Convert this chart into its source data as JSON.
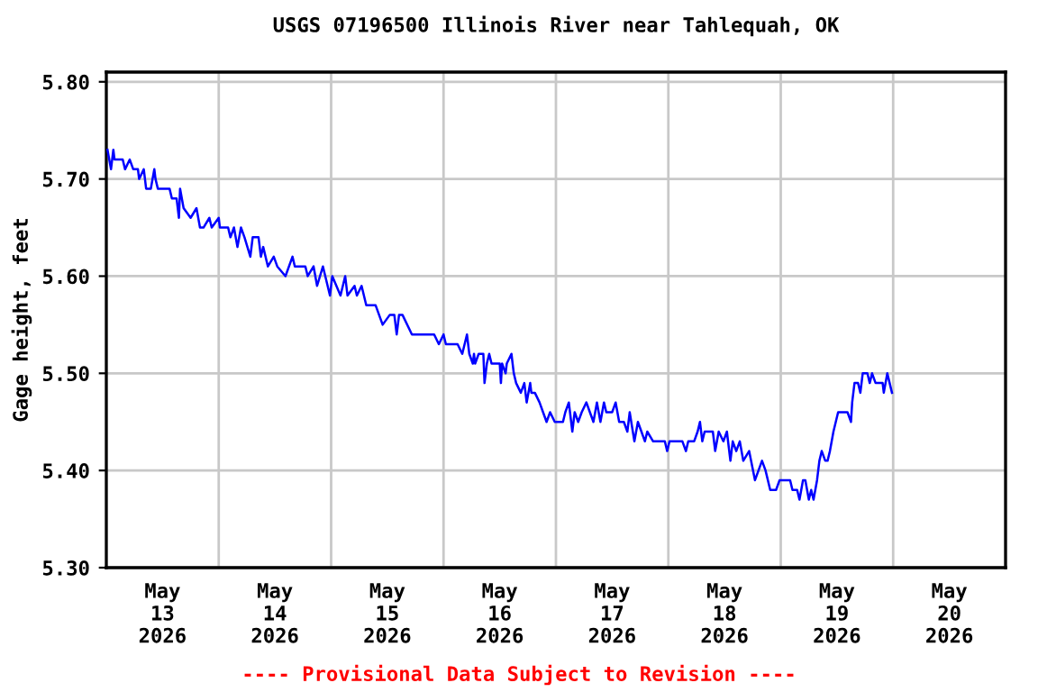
{
  "chart_data": {
    "type": "line",
    "title": "USGS 07196500 Illinois River near Tahlequah, OK",
    "ylabel": "Gage height, feet",
    "annotations": [
      "---- Provisional Data Subject to Revision ----"
    ],
    "xlim": [
      "2026-05-13T00:00",
      "2026-05-21T00:00"
    ],
    "xticks": [
      {
        "value": "2026-05-13T12:00",
        "label": "May\n13\n2026"
      },
      {
        "value": "2026-05-14T00:00",
        "label": null
      },
      {
        "value": "2026-05-14T12:00",
        "label": "May\n14\n2026"
      },
      {
        "value": "2026-05-15T00:00",
        "label": null
      },
      {
        "value": "2026-05-15T12:00",
        "label": "May\n15\n2026"
      },
      {
        "value": "2026-05-16T00:00",
        "label": null
      },
      {
        "value": "2026-05-16T12:00",
        "label": "May\n16\n2026"
      },
      {
        "value": "2026-05-17T00:00",
        "label": null
      },
      {
        "value": "2026-05-17T12:00",
        "label": "May\n17\n2026"
      },
      {
        "value": "2026-05-18T00:00",
        "label": null
      },
      {
        "value": "2026-05-18T12:00",
        "label": "May\n18\n2026"
      },
      {
        "value": "2026-05-19T00:00",
        "label": null
      },
      {
        "value": "2026-05-19T12:00",
        "label": "May\n19\n2026"
      },
      {
        "value": "2026-05-20T00:00",
        "label": null
      },
      {
        "value": "2026-05-20T12:00",
        "label": "May\n20\n2026"
      }
    ],
    "ylim": [
      5.3,
      5.81
    ],
    "yticks": [
      {
        "value": 5.3,
        "label": "5.30"
      },
      {
        "value": 5.4,
        "label": "5.40"
      },
      {
        "value": 5.5,
        "label": "5.50"
      },
      {
        "value": 5.6,
        "label": "5.60"
      },
      {
        "value": 5.7,
        "label": "5.70"
      },
      {
        "value": 5.8,
        "label": "5.80"
      }
    ],
    "grid": true,
    "legend": false,
    "marker": "none",
    "line_style": "solid",
    "series": [
      {
        "color": "#0000ff",
        "x": [
          "2026-05-13T00:15",
          "2026-05-13T01:00",
          "2026-05-13T01:30",
          "2026-05-13T01:45",
          "2026-05-13T03:30",
          "2026-05-13T04:00",
          "2026-05-13T05:00",
          "2026-05-13T05:45",
          "2026-05-13T06:45",
          "2026-05-13T07:00",
          "2026-05-13T08:00",
          "2026-05-13T08:30",
          "2026-05-13T09:30",
          "2026-05-13T10:15",
          "2026-05-13T10:30",
          "2026-05-13T11:00",
          "2026-05-13T13:30",
          "2026-05-13T14:00",
          "2026-05-13T15:00",
          "2026-05-13T15:30",
          "2026-05-13T15:45",
          "2026-05-13T16:30",
          "2026-05-13T18:00",
          "2026-05-13T19:15",
          "2026-05-13T20:00",
          "2026-05-13T20:45",
          "2026-05-13T22:00",
          "2026-05-13T22:30",
          "2026-05-14T00:00",
          "2026-05-14T00:15",
          "2026-05-14T02:00",
          "2026-05-14T02:30",
          "2026-05-14T03:15",
          "2026-05-14T04:00",
          "2026-05-14T04:45",
          "2026-05-14T05:30",
          "2026-05-14T06:45",
          "2026-05-14T07:15",
          "2026-05-14T08:30",
          "2026-05-14T09:00",
          "2026-05-14T09:30",
          "2026-05-14T10:30",
          "2026-05-14T11:45",
          "2026-05-14T12:30",
          "2026-05-14T14:15",
          "2026-05-14T15:45",
          "2026-05-14T16:15",
          "2026-05-14T18:30",
          "2026-05-14T19:00",
          "2026-05-14T20:15",
          "2026-05-14T21:00",
          "2026-05-14T22:15",
          "2026-05-14T23:45",
          "2026-05-15T00:15",
          "2026-05-15T02:00",
          "2026-05-15T03:00",
          "2026-05-15T03:30",
          "2026-05-15T05:00",
          "2026-05-15T05:30",
          "2026-05-15T06:30",
          "2026-05-15T07:30",
          "2026-05-15T09:30",
          "2026-05-15T10:15",
          "2026-05-15T11:00",
          "2026-05-15T12:30",
          "2026-05-15T13:30",
          "2026-05-15T14:00",
          "2026-05-15T14:30",
          "2026-05-15T15:15",
          "2026-05-15T17:15",
          "2026-05-15T22:00",
          "2026-05-15T23:00",
          "2026-05-16T00:00",
          "2026-05-16T00:30",
          "2026-05-16T03:00",
          "2026-05-16T04:00",
          "2026-05-16T05:00",
          "2026-05-16T05:30",
          "2026-05-16T06:15",
          "2026-05-16T06:30",
          "2026-05-16T06:45",
          "2026-05-16T07:30",
          "2026-05-16T08:30",
          "2026-05-16T08:45",
          "2026-05-16T09:15",
          "2026-05-16T09:45",
          "2026-05-16T10:15",
          "2026-05-16T12:00",
          "2026-05-16T12:15",
          "2026-05-16T12:30",
          "2026-05-16T13:15",
          "2026-05-16T13:30",
          "2026-05-16T14:30",
          "2026-05-16T15:00",
          "2026-05-16T15:30",
          "2026-05-16T16:30",
          "2026-05-16T17:15",
          "2026-05-16T17:45",
          "2026-05-16T18:30",
          "2026-05-16T18:45",
          "2026-05-16T19:30",
          "2026-05-16T20:30",
          "2026-05-16T21:15",
          "2026-05-16T22:00",
          "2026-05-16T22:45",
          "2026-05-16T23:45",
          "2026-05-17T01:30",
          "2026-05-17T02:00",
          "2026-05-17T02:45",
          "2026-05-17T03:30",
          "2026-05-17T04:00",
          "2026-05-17T04:45",
          "2026-05-17T05:30",
          "2026-05-17T06:30",
          "2026-05-17T07:15",
          "2026-05-17T08:00",
          "2026-05-17T08:45",
          "2026-05-17T09:30",
          "2026-05-17T10:15",
          "2026-05-17T10:45",
          "2026-05-17T12:00",
          "2026-05-17T12:45",
          "2026-05-17T13:30",
          "2026-05-17T14:30",
          "2026-05-17T15:15",
          "2026-05-17T15:45",
          "2026-05-17T16:45",
          "2026-05-17T17:30",
          "2026-05-17T18:15",
          "2026-05-17T19:00",
          "2026-05-17T19:30",
          "2026-05-17T20:45",
          "2026-05-17T21:45",
          "2026-05-17T23:15",
          "2026-05-17T23:45",
          "2026-05-18T00:15",
          "2026-05-18T03:00",
          "2026-05-18T03:45",
          "2026-05-18T04:15",
          "2026-05-18T05:30",
          "2026-05-18T06:15",
          "2026-05-18T06:45",
          "2026-05-18T07:15",
          "2026-05-18T07:45",
          "2026-05-18T09:30",
          "2026-05-18T10:00",
          "2026-05-18T10:45",
          "2026-05-18T11:45",
          "2026-05-18T12:30",
          "2026-05-18T13:15",
          "2026-05-18T13:45",
          "2026-05-18T14:30",
          "2026-05-18T15:15",
          "2026-05-18T16:00",
          "2026-05-18T17:15",
          "2026-05-18T18:30",
          "2026-05-18T19:15",
          "2026-05-18T20:00",
          "2026-05-18T20:45",
          "2026-05-18T21:45",
          "2026-05-18T23:00",
          "2026-05-18T23:45",
          "2026-05-19T02:00",
          "2026-05-19T02:30",
          "2026-05-19T03:30",
          "2026-05-19T04:00",
          "2026-05-19T04:45",
          "2026-05-19T05:15",
          "2026-05-19T06:00",
          "2026-05-19T06:30",
          "2026-05-19T07:00",
          "2026-05-19T07:45",
          "2026-05-19T08:15",
          "2026-05-19T08:45",
          "2026-05-19T09:30",
          "2026-05-19T10:00",
          "2026-05-19T10:30",
          "2026-05-19T11:15",
          "2026-05-19T11:45",
          "2026-05-19T12:15",
          "2026-05-19T13:00",
          "2026-05-19T13:45",
          "2026-05-19T14:15",
          "2026-05-19T15:00",
          "2026-05-19T15:15",
          "2026-05-19T15:45",
          "2026-05-19T16:30",
          "2026-05-19T17:00",
          "2026-05-19T17:30",
          "2026-05-19T18:30",
          "2026-05-19T19:00",
          "2026-05-19T19:30",
          "2026-05-19T20:15",
          "2026-05-19T21:45",
          "2026-05-19T22:00",
          "2026-05-19T22:45",
          "2026-05-19T23:15",
          "2026-05-19T23:45"
        ],
        "values": [
          5.73,
          5.71,
          5.73,
          5.72,
          5.72,
          5.71,
          5.72,
          5.71,
          5.71,
          5.7,
          5.71,
          5.69,
          5.69,
          5.71,
          5.7,
          5.69,
          5.69,
          5.68,
          5.68,
          5.66,
          5.69,
          5.67,
          5.66,
          5.67,
          5.65,
          5.65,
          5.66,
          5.65,
          5.66,
          5.65,
          5.65,
          5.64,
          5.65,
          5.63,
          5.65,
          5.64,
          5.62,
          5.64,
          5.64,
          5.62,
          5.63,
          5.61,
          5.62,
          5.61,
          5.6,
          5.62,
          5.61,
          5.61,
          5.6,
          5.61,
          5.59,
          5.61,
          5.58,
          5.6,
          5.58,
          5.6,
          5.58,
          5.59,
          5.58,
          5.59,
          5.57,
          5.57,
          5.56,
          5.55,
          5.56,
          5.56,
          5.54,
          5.56,
          5.56,
          5.54,
          5.54,
          5.53,
          5.54,
          5.53,
          5.53,
          5.52,
          5.54,
          5.52,
          5.51,
          5.52,
          5.51,
          5.52,
          5.52,
          5.49,
          5.51,
          5.52,
          5.51,
          5.51,
          5.49,
          5.51,
          5.5,
          5.51,
          5.52,
          5.5,
          5.49,
          5.48,
          5.49,
          5.47,
          5.49,
          5.48,
          5.48,
          5.47,
          5.46,
          5.45,
          5.46,
          5.45,
          5.45,
          5.46,
          5.47,
          5.44,
          5.46,
          5.45,
          5.46,
          5.47,
          5.46,
          5.45,
          5.47,
          5.45,
          5.47,
          5.46,
          5.46,
          5.47,
          5.45,
          5.45,
          5.44,
          5.46,
          5.43,
          5.45,
          5.44,
          5.43,
          5.44,
          5.43,
          5.43,
          5.43,
          5.42,
          5.43,
          5.43,
          5.42,
          5.43,
          5.43,
          5.44,
          5.45,
          5.43,
          5.44,
          5.44,
          5.42,
          5.44,
          5.43,
          5.44,
          5.41,
          5.43,
          5.42,
          5.43,
          5.41,
          5.42,
          5.39,
          5.4,
          5.41,
          5.4,
          5.38,
          5.38,
          5.39,
          5.39,
          5.38,
          5.38,
          5.37,
          5.39,
          5.39,
          5.37,
          5.38,
          5.37,
          5.39,
          5.41,
          5.42,
          5.41,
          5.41,
          5.42,
          5.44,
          5.45,
          5.46,
          5.46,
          5.46,
          5.46,
          5.45,
          5.47,
          5.49,
          5.49,
          5.48,
          5.5,
          5.5,
          5.49,
          5.5,
          5.49,
          5.49,
          5.48,
          5.5,
          5.49,
          5.48
        ]
      }
    ]
  }
}
